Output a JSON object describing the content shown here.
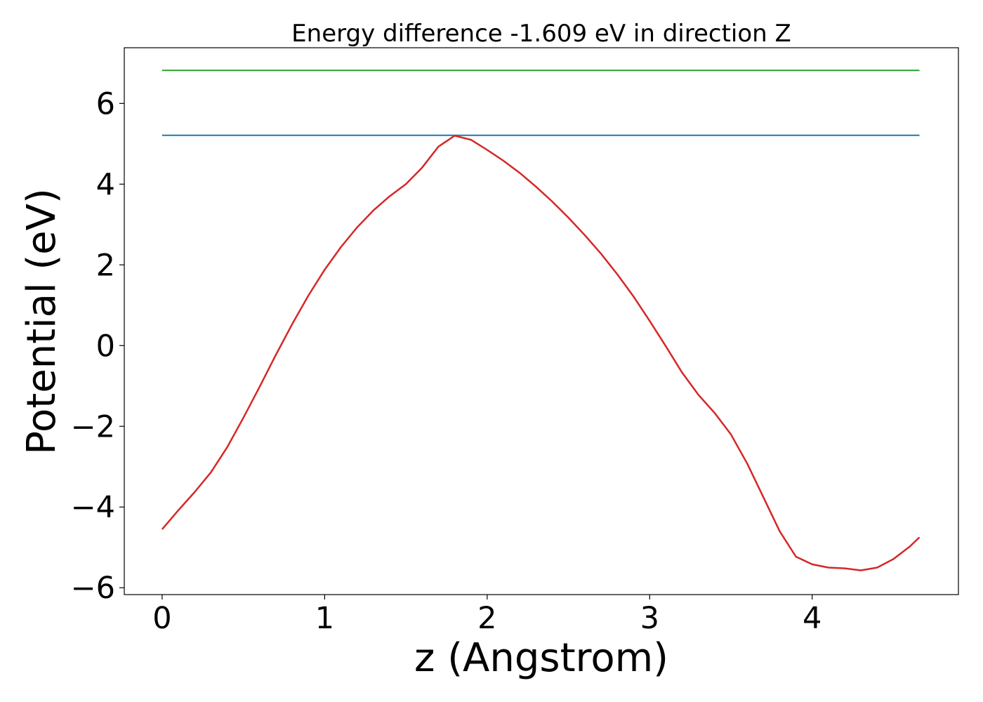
{
  "chart_data": {
    "type": "line",
    "title": "Energy difference -1.609 eV in direction Z",
    "xlabel": "z (Angstrom)",
    "ylabel": "Potential (eV)",
    "xlim": [
      -0.233,
      4.9
    ],
    "ylim": [
      -6.17,
      7.38
    ],
    "xticks": [
      0,
      1,
      2,
      3,
      4
    ],
    "xtick_labels": [
      "0",
      "1",
      "2",
      "3",
      "4"
    ],
    "yticks": [
      -6,
      -4,
      -2,
      0,
      2,
      4,
      6
    ],
    "ytick_labels": [
      "−6",
      "−4",
      "−2",
      "0",
      "2",
      "4",
      "6"
    ],
    "grid": false,
    "series": [
      {
        "color": "#2ca02c",
        "kind": "hline",
        "x": [
          0,
          4.66
        ],
        "y": [
          6.82,
          6.82
        ]
      },
      {
        "color": "#1f77b4",
        "kind": "hline",
        "x": [
          0,
          4.66
        ],
        "y": [
          5.21,
          5.21
        ]
      },
      {
        "color": "#d62728",
        "kind": "curve",
        "x": [
          0,
          0.1,
          0.2,
          0.3,
          0.4,
          0.5,
          0.6,
          0.7,
          0.8,
          0.9,
          1.0,
          1.1,
          1.2,
          1.3,
          1.4,
          1.5,
          1.6,
          1.7,
          1.8,
          1.9,
          2.0,
          2.1,
          2.2,
          2.3,
          2.4,
          2.5,
          2.6,
          2.7,
          2.8,
          2.9,
          3.0,
          3.1,
          3.2,
          3.3,
          3.4,
          3.5,
          3.6,
          3.7,
          3.8,
          3.9,
          4.0,
          4.1,
          4.2,
          4.3,
          4.4,
          4.5,
          4.6,
          4.66
        ],
        "y": [
          -4.55,
          -4.08,
          -3.63,
          -3.14,
          -2.52,
          -1.79,
          -1.02,
          -0.23,
          0.53,
          1.24,
          1.88,
          2.44,
          2.93,
          3.35,
          3.7,
          4.0,
          4.41,
          4.93,
          5.2,
          5.1,
          4.85,
          4.58,
          4.28,
          3.94,
          3.57,
          3.17,
          2.74,
          2.28,
          1.77,
          1.22,
          0.61,
          -0.02,
          -0.67,
          -1.22,
          -1.67,
          -2.2,
          -2.92,
          -3.76,
          -4.6,
          -5.23,
          -5.42,
          -5.5,
          -5.52,
          -5.57,
          -5.5,
          -5.29,
          -4.98,
          -4.75
        ]
      }
    ]
  }
}
